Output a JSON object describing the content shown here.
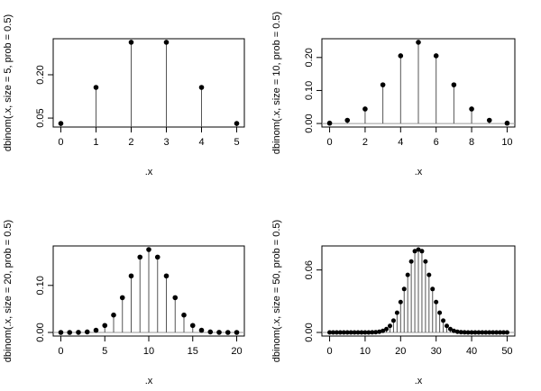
{
  "chart_data": [
    {
      "type": "scatter",
      "style": "stem plot with filled points",
      "ylabel": "dbinom(.x, size = 5, prob = 0.5)",
      "xlabel": ".x",
      "x": [
        0,
        1,
        2,
        3,
        4,
        5
      ],
      "y": [
        0.03125,
        0.15625,
        0.3125,
        0.3125,
        0.15625,
        0.03125
      ],
      "xlim": [
        0,
        5
      ],
      "ylim": [
        0.03125,
        0.3125
      ],
      "xticks": [
        0,
        1,
        2,
        3,
        4,
        5
      ],
      "xtick_labels": [
        "0",
        "1",
        "2",
        "3",
        "4",
        "5"
      ],
      "yticks": [
        0.05,
        0.2
      ],
      "ytick_labels": [
        "0.05",
        "0.20"
      ]
    },
    {
      "type": "scatter",
      "style": "stem plot with filled points",
      "ylabel": "dbinom(.x, size = 10, prob = 0.5)",
      "xlabel": ".x",
      "x": [
        0,
        1,
        2,
        3,
        4,
        5,
        6,
        7,
        8,
        9,
        10
      ],
      "y": [
        0.000977,
        0.009766,
        0.043945,
        0.117188,
        0.205078,
        0.246094,
        0.205078,
        0.117188,
        0.043945,
        0.009766,
        0.000977
      ],
      "xlim": [
        0,
        10
      ],
      "ylim": [
        0,
        0.246094
      ],
      "xticks": [
        0,
        2,
        4,
        6,
        8,
        10
      ],
      "xtick_labels": [
        "0",
        "2",
        "4",
        "6",
        "8",
        "10"
      ],
      "yticks": [
        0,
        0.1,
        0.2
      ],
      "ytick_labels": [
        "0.00",
        "0.10",
        "0.20"
      ]
    },
    {
      "type": "scatter",
      "style": "stem plot with filled points",
      "ylabel": "dbinom(.x, size = 20, prob = 0.5)",
      "xlabel": ".x",
      "x": [
        0,
        1,
        2,
        3,
        4,
        5,
        6,
        7,
        8,
        9,
        10,
        11,
        12,
        13,
        14,
        15,
        16,
        17,
        18,
        19,
        20
      ],
      "y": [
        1e-06,
        1.9e-05,
        0.000181,
        0.001087,
        0.004621,
        0.014786,
        0.036964,
        0.073929,
        0.120134,
        0.160179,
        0.176197,
        0.160179,
        0.120134,
        0.073929,
        0.036964,
        0.014786,
        0.004621,
        0.001087,
        0.000181,
        1.9e-05,
        1e-06
      ],
      "xlim": [
        0,
        20
      ],
      "ylim": [
        0,
        0.176197
      ],
      "xticks": [
        0,
        5,
        10,
        15,
        20
      ],
      "xtick_labels": [
        "0",
        "5",
        "10",
        "15",
        "20"
      ],
      "yticks": [
        0,
        0.1
      ],
      "ytick_labels": [
        "0.00",
        "0.10"
      ]
    },
    {
      "type": "scatter",
      "style": "stem plot with filled points",
      "ylabel": "dbinom(.x, size = 50, prob = 0.5)",
      "xlabel": ".x",
      "x": [
        0,
        1,
        2,
        3,
        4,
        5,
        6,
        7,
        8,
        9,
        10,
        11,
        12,
        13,
        14,
        15,
        16,
        17,
        18,
        19,
        20,
        21,
        22,
        23,
        24,
        25,
        26,
        27,
        28,
        29,
        30,
        31,
        32,
        33,
        34,
        35,
        36,
        37,
        38,
        39,
        40,
        41,
        42,
        43,
        44,
        45,
        46,
        47,
        48,
        49,
        50
      ],
      "y": [
        0,
        0,
        0,
        0,
        0,
        0,
        0,
        0,
        0,
        2e-06,
        9e-06,
        3e-05,
        9.2e-05,
        0.000255,
        0.000648,
        0.001506,
        0.00321,
        0.006291,
        0.011357,
        0.018928,
        0.029192,
        0.041703,
        0.055279,
        0.068098,
        0.078047,
        0.0796,
        0.078047,
        0.068098,
        0.055279,
        0.041703,
        0.029192,
        0.018928,
        0.011357,
        0.006291,
        0.00321,
        0.001506,
        0.000648,
        0.000255,
        9.2e-05,
        3e-05,
        9e-06,
        2e-06,
        0,
        0,
        0,
        0,
        0,
        0,
        0,
        0,
        0
      ],
      "xlim": [
        0,
        50
      ],
      "ylim": [
        0,
        0.0796
      ],
      "xticks": [
        0,
        10,
        20,
        30,
        40,
        50
      ],
      "xtick_labels": [
        "0",
        "10",
        "20",
        "30",
        "40",
        "50"
      ],
      "yticks": [
        0,
        0.06
      ],
      "ytick_labels": [
        "0.00",
        "0.06"
      ]
    }
  ]
}
